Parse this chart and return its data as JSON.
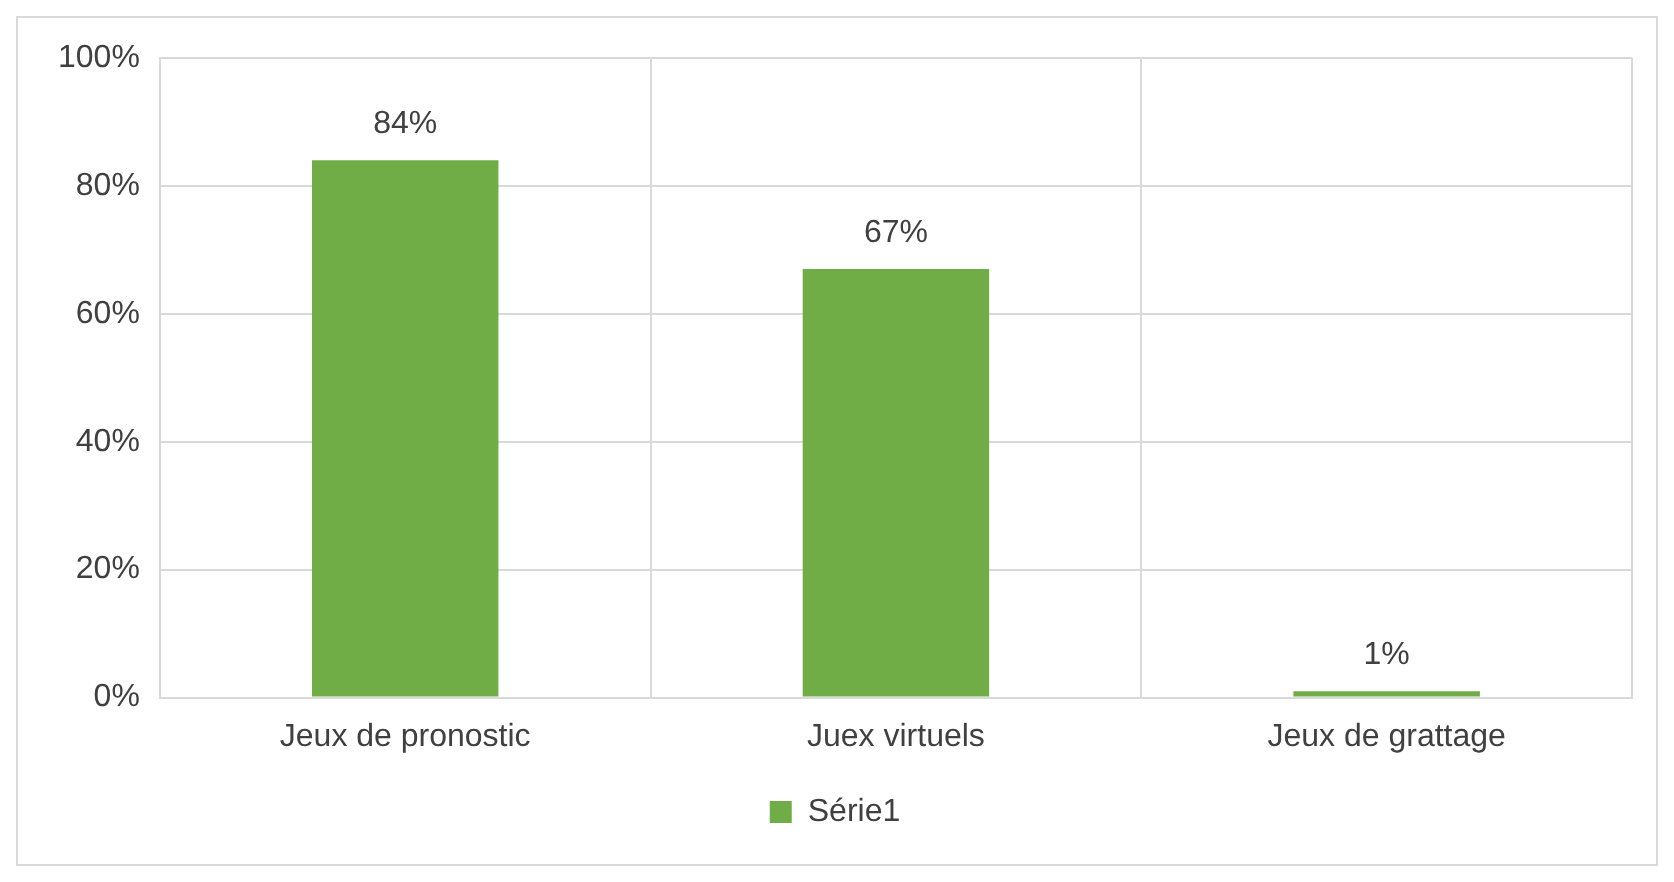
{
  "chart_data": {
    "type": "bar",
    "categories": [
      "Jeux de pronostic",
      "Juex virtuels",
      "Jeux de grattage"
    ],
    "series": [
      {
        "name": "Série1",
        "color": "#70ad47",
        "values": [
          84,
          67,
          1
        ],
        "value_labels": [
          "84%",
          "67%",
          "1%"
        ]
      }
    ],
    "ylim": [
      0,
      100
    ],
    "yticks": [
      {
        "value": 0,
        "label": "0%"
      },
      {
        "value": 20,
        "label": "20%"
      },
      {
        "value": 40,
        "label": "40%"
      },
      {
        "value": 60,
        "label": "60%"
      },
      {
        "value": 80,
        "label": "80%"
      },
      {
        "value": 100,
        "label": "100%"
      }
    ],
    "grid": true,
    "legend": "bottom"
  }
}
